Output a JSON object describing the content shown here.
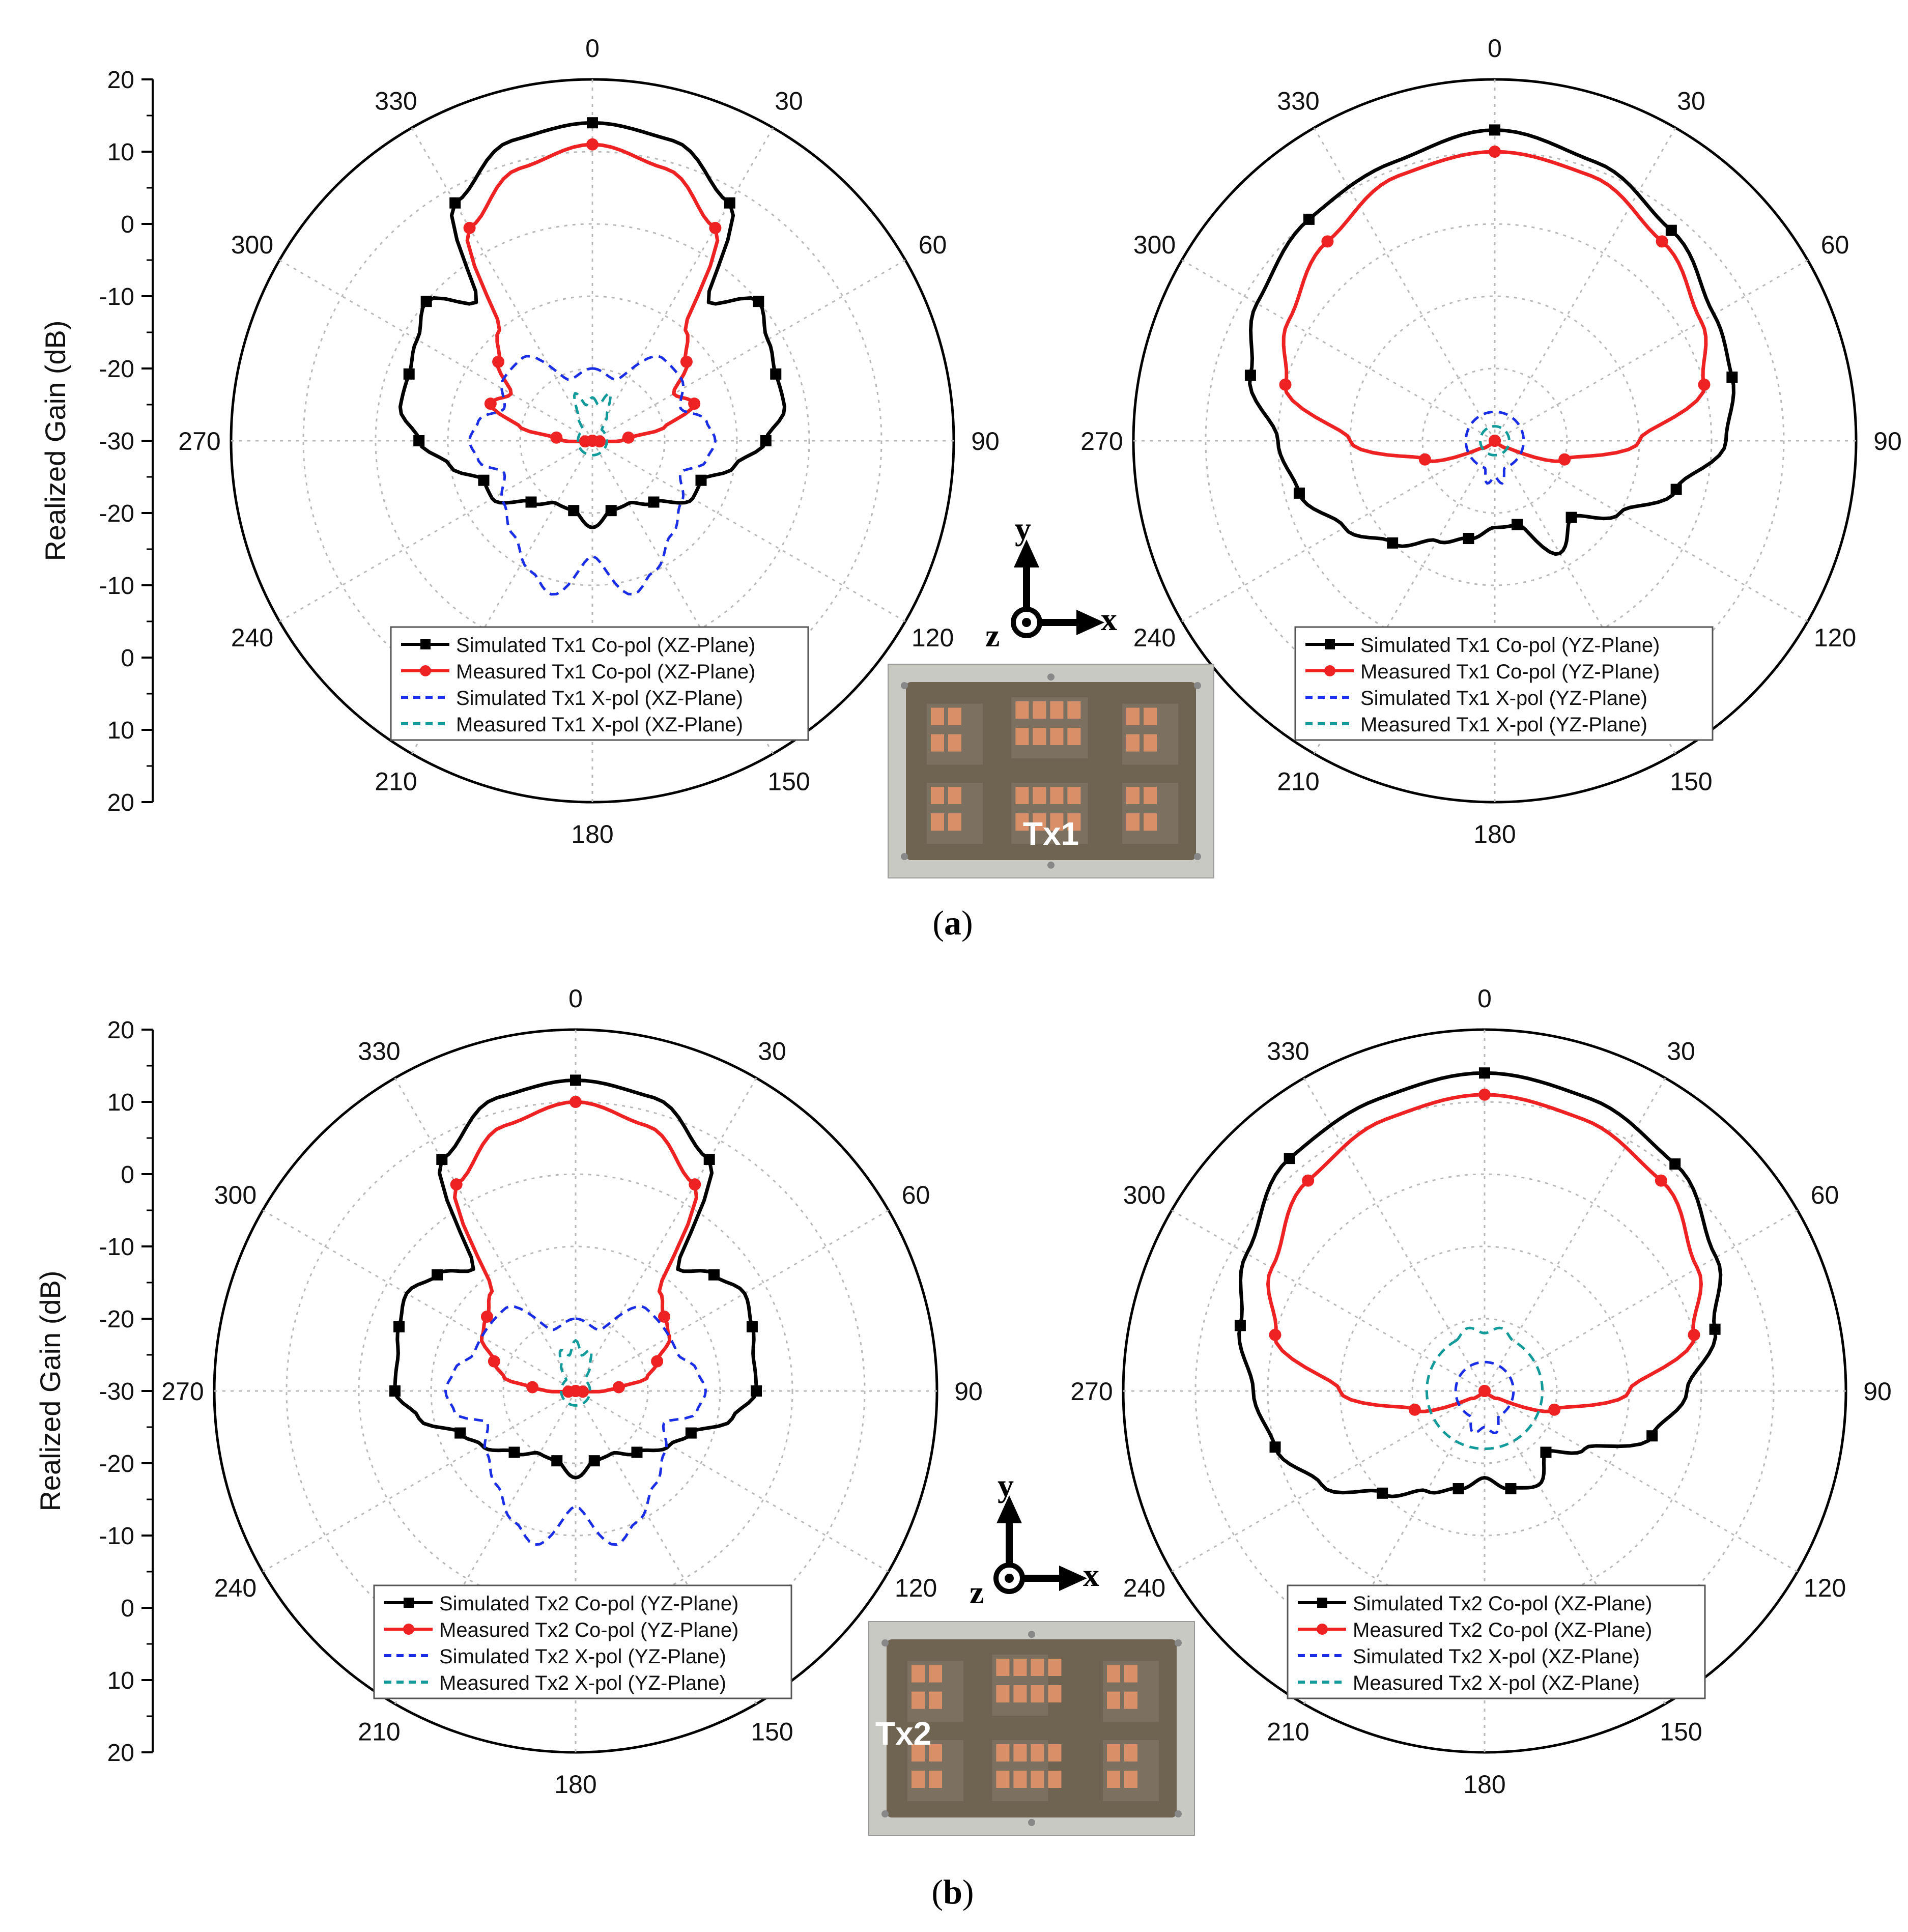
{
  "colors": {
    "sim_co": "#000000",
    "meas_co": "#ee2222",
    "sim_x": "#1a2ee6",
    "meas_x": "#139a9a",
    "grid": "#b8b8b8",
    "board": "#6f6452",
    "pad": "#d99068"
  },
  "panels": [
    {
      "label": "(a)",
      "label_letter": "a",
      "axis_title": "Realized Gain (dB)",
      "board_label": "Tx1",
      "coord": {
        "y": "y",
        "x": "x",
        "z": "z"
      }
    },
    {
      "label": "(b)",
      "label_letter": "b",
      "axis_title": "Realized Gain (dB)",
      "board_label": "Tx2",
      "coord": {
        "y": "y",
        "x": "x",
        "z": "z"
      }
    }
  ],
  "chart_data": [
    {
      "type": "polar-line",
      "panel": "a",
      "r_axis": {
        "min": -30,
        "max": 20,
        "ticks": [
          "20",
          "10",
          "0",
          "-10",
          "-20",
          "-30",
          "-20",
          "-10",
          "0",
          "10",
          "20"
        ]
      },
      "angle_ticks": [
        "0",
        "30",
        "60",
        "90",
        "120",
        "150",
        "180",
        "210",
        "240",
        "270",
        "300",
        "330"
      ],
      "legend": [
        "Simulated Tx1 Co-pol (XZ-Plane)",
        "Measured Tx1 Co-pol (XZ-Plane)",
        "Simulated Tx1 X-pol (XZ-Plane)",
        "Measured Tx1 X-pol (XZ-Plane)"
      ],
      "series": [
        {
          "name": "Simulated Tx1 Co-pol (XZ-Plane)",
          "style": "sim_co",
          "angles": [
            0,
            15,
            30,
            40,
            50,
            60,
            70,
            80,
            90,
            100,
            110,
            120,
            135,
            150,
            165,
            180,
            195,
            210,
            225,
            240,
            250,
            260,
            270,
            280,
            290,
            300,
            310,
            320,
            330,
            345
          ],
          "values": [
            14,
            13,
            8,
            -5,
            0,
            -2,
            -3,
            -3,
            -6,
            -10,
            -14,
            -14,
            -18,
            -20,
            -20,
            -18,
            -20,
            -20,
            -18,
            -14,
            -14,
            -10,
            -6,
            -3,
            -3,
            -2,
            0,
            -5,
            8,
            13
          ]
        },
        {
          "name": "Measured Tx1 Co-pol (XZ-Plane)",
          "style": "meas_co",
          "angles": [
            0,
            15,
            30,
            40,
            50,
            60,
            70,
            80,
            85,
            90,
            95,
            100,
            120,
            150,
            180,
            210,
            240,
            260,
            265,
            270,
            275,
            280,
            290,
            300,
            310,
            320,
            330,
            345
          ],
          "values": [
            11,
            9,
            4,
            -10,
            -13,
            -17,
            -15,
            -20,
            -25,
            -26,
            -29,
            -30,
            -30,
            -30,
            -30,
            -30,
            -30,
            -30,
            -29,
            -26,
            -25,
            -20,
            -15,
            -17,
            -13,
            -10,
            4,
            9
          ]
        },
        {
          "name": "Simulated Tx1 X-pol (XZ-Plane)",
          "style": "sim_x",
          "angles": [
            0,
            20,
            40,
            55,
            70,
            80,
            90,
            100,
            110,
            125,
            140,
            155,
            165,
            180,
            195,
            205,
            220,
            235,
            250,
            260,
            270,
            280,
            290,
            305,
            320,
            340
          ],
          "values": [
            -20,
            -21,
            -15,
            -15,
            -17,
            -14,
            -13,
            -14,
            -17,
            -15,
            -13,
            -10,
            -8,
            -14,
            -8,
            -10,
            -13,
            -15,
            -17,
            -14,
            -13,
            -14,
            -17,
            -15,
            -15,
            -21
          ]
        },
        {
          "name": "Measured Tx1 X-pol (XZ-Plane)",
          "style": "meas_x",
          "angles": [
            0,
            10,
            20,
            30,
            40,
            320,
            330,
            340,
            350
          ],
          "values": [
            -24,
            -25,
            -23,
            -26,
            -28,
            -28,
            -26,
            -23,
            -25
          ]
        }
      ]
    },
    {
      "type": "polar-line",
      "panel": "a",
      "legend": [
        "Simulated Tx1 Co-pol (YZ-Plane)",
        "Measured Tx1 Co-pol (YZ-Plane)",
        "Simulated Tx1 X-pol (YZ-Plane)",
        "Measured Tx1 X-pol (YZ-Plane)"
      ],
      "angle_ticks": [
        "0",
        "30",
        "60",
        "90",
        "120",
        "150",
        "180",
        "210",
        "240",
        "270",
        "300",
        "330"
      ],
      "series": [
        {
          "name": "Simulated Tx1 Co-pol (YZ-Plane)",
          "style": "sim_co",
          "angles": [
            0,
            20,
            40,
            60,
            75,
            90,
            105,
            120,
            135,
            150,
            165,
            180,
            195,
            210,
            225,
            240,
            255,
            270,
            285,
            300,
            320,
            340
          ],
          "values": [
            13,
            11,
            8,
            5,
            4,
            2,
            -4,
            -10,
            -15,
            -12,
            -18,
            -18,
            -16,
            -14,
            -10,
            -6,
            -2,
            0,
            5,
            8,
            10,
            11
          ]
        },
        {
          "name": "Measured Tx1 Co-pol (YZ-Plane)",
          "style": "meas_co",
          "angles": [
            0,
            20,
            40,
            60,
            75,
            90,
            105,
            120,
            140,
            160,
            180,
            200,
            220,
            240,
            255,
            270,
            285,
            300,
            320,
            340
          ],
          "values": [
            10,
            9,
            6,
            3,
            0,
            -10,
            -20,
            -28,
            -30,
            -30,
            -30,
            -30,
            -30,
            -28,
            -20,
            -10,
            0,
            3,
            6,
            9
          ]
        },
        {
          "name": "Simulated Tx1 X-pol (YZ-Plane)",
          "style": "sim_x",
          "angles": [
            160,
            170,
            180,
            190,
            200
          ],
          "values": [
            -26,
            -24,
            -25,
            -24,
            -26
          ]
        },
        {
          "name": "Measured Tx1 X-pol (YZ-Plane)",
          "style": "meas_x",
          "angles": [
            350,
            0,
            10
          ],
          "values": [
            -28,
            -28,
            -28
          ]
        }
      ]
    },
    {
      "type": "polar-line",
      "panel": "b",
      "r_axis": {
        "min": -30,
        "max": 20,
        "ticks": [
          "20",
          "10",
          "0",
          "-10",
          "-20",
          "-30",
          "-20",
          "-10",
          "0",
          "10",
          "20"
        ]
      },
      "angle_ticks": [
        "0",
        "30",
        "60",
        "90",
        "120",
        "150",
        "180",
        "210",
        "240",
        "270",
        "300",
        "330"
      ],
      "legend": [
        "Simulated Tx2 Co-pol (YZ-Plane)",
        "Measured Tx2 Co-pol (YZ-Plane)",
        "Simulated Tx2 X-pol (YZ-Plane)",
        "Measured Tx2 X-pol (YZ-Plane)"
      ],
      "series": [
        {
          "name": "Simulated Tx2 Co-pol (YZ-Plane)",
          "style": "sim_co",
          "angles": [
            0,
            15,
            30,
            40,
            50,
            60,
            70,
            80,
            90,
            100,
            110,
            120,
            135,
            150,
            165,
            180,
            195,
            210,
            225,
            240,
            250,
            260,
            270,
            280,
            290,
            300,
            310,
            320,
            330,
            345
          ],
          "values": [
            13,
            12,
            7,
            -8,
            -5,
            -3,
            -4,
            -5,
            -5,
            -8,
            -13,
            -15,
            -18,
            -20,
            -20,
            -18,
            -20,
            -20,
            -18,
            -15,
            -13,
            -8,
            -5,
            -5,
            -4,
            -3,
            -5,
            -8,
            7,
            12
          ]
        },
        {
          "name": "Measured Tx2 Co-pol (YZ-Plane)",
          "style": "meas_co",
          "angles": [
            0,
            15,
            30,
            40,
            50,
            60,
            70,
            80,
            85,
            90,
            95,
            100,
            120,
            150,
            180,
            210,
            240,
            260,
            265,
            270,
            275,
            280,
            290,
            300,
            310,
            320,
            330,
            345
          ],
          "values": [
            10,
            8,
            3,
            -12,
            -14,
            -15,
            -18,
            -20,
            -24,
            -26,
            -29,
            -30,
            -30,
            -30,
            -30,
            -30,
            -30,
            -30,
            -29,
            -26,
            -24,
            -20,
            -18,
            -15,
            -14,
            -12,
            3,
            8
          ]
        },
        {
          "name": "Simulated Tx2 X-pol (YZ-Plane)",
          "style": "sim_x",
          "angles": [
            0,
            20,
            40,
            55,
            70,
            80,
            90,
            100,
            110,
            125,
            140,
            155,
            165,
            180,
            195,
            205,
            220,
            235,
            250,
            260,
            270,
            280,
            290,
            305,
            320,
            340
          ],
          "values": [
            -20,
            -21,
            -15,
            -15,
            -15,
            -13,
            -12,
            -13,
            -17,
            -15,
            -13,
            -10,
            -8,
            -14,
            -8,
            -10,
            -13,
            -15,
            -17,
            -13,
            -12,
            -13,
            -15,
            -15,
            -15,
            -21
          ]
        },
        {
          "name": "Measured Tx2 X-pol (YZ-Plane)",
          "style": "meas_x",
          "angles": [
            0,
            10,
            20,
            30,
            40,
            320,
            330,
            340,
            350
          ],
          "values": [
            -23,
            -25,
            -24,
            -26,
            -28,
            -28,
            -26,
            -24,
            -25
          ]
        }
      ]
    },
    {
      "type": "polar-line",
      "panel": "b",
      "legend": [
        "Simulated Tx2 Co-pol (XZ-Plane)",
        "Measured Tx2 Co-pol (XZ-Plane)",
        "Simulated Tx2 X-pol (XZ-Plane)",
        "Measured Tx2 X-pol (XZ-Plane)"
      ],
      "angle_ticks": [
        "0",
        "30",
        "60",
        "90",
        "120",
        "150",
        "180",
        "210",
        "240",
        "270",
        "300",
        "330"
      ],
      "series": [
        {
          "name": "Simulated Tx2 Co-pol (XZ-Plane)",
          "style": "sim_co",
          "angles": [
            0,
            20,
            40,
            60,
            75,
            90,
            105,
            120,
            135,
            150,
            165,
            180,
            195,
            210,
            225,
            240,
            255,
            270,
            285,
            300,
            320,
            340
          ],
          "values": [
            14,
            13,
            11,
            7,
            3,
            -2,
            -6,
            -14,
            -18,
            -15,
            -16,
            -18,
            -16,
            -14,
            -10,
            -4,
            0,
            2,
            5,
            8,
            12,
            13
          ]
        },
        {
          "name": "Measured Tx2 Co-pol (XZ-Plane)",
          "style": "meas_co",
          "angles": [
            0,
            20,
            40,
            60,
            75,
            90,
            105,
            120,
            140,
            160,
            180,
            200,
            220,
            240,
            255,
            270,
            285,
            300,
            320,
            340
          ],
          "values": [
            11,
            10,
            8,
            4,
            0,
            -10,
            -20,
            -28,
            -30,
            -30,
            -30,
            -30,
            -30,
            -28,
            -20,
            -10,
            0,
            4,
            8,
            10
          ]
        },
        {
          "name": "Simulated Tx2 X-pol (XZ-Plane)",
          "style": "sim_x",
          "angles": [
            150,
            165,
            180,
            195,
            210
          ],
          "values": [
            -26,
            -24,
            -25,
            -24,
            -26
          ]
        },
        {
          "name": "Measured Tx2 X-pol (XZ-Plane)",
          "style": "meas_x",
          "angles": [
            330,
            345,
            0,
            15,
            30
          ],
          "values": [
            -22,
            -21,
            -22,
            -21,
            -22
          ]
        }
      ]
    }
  ]
}
